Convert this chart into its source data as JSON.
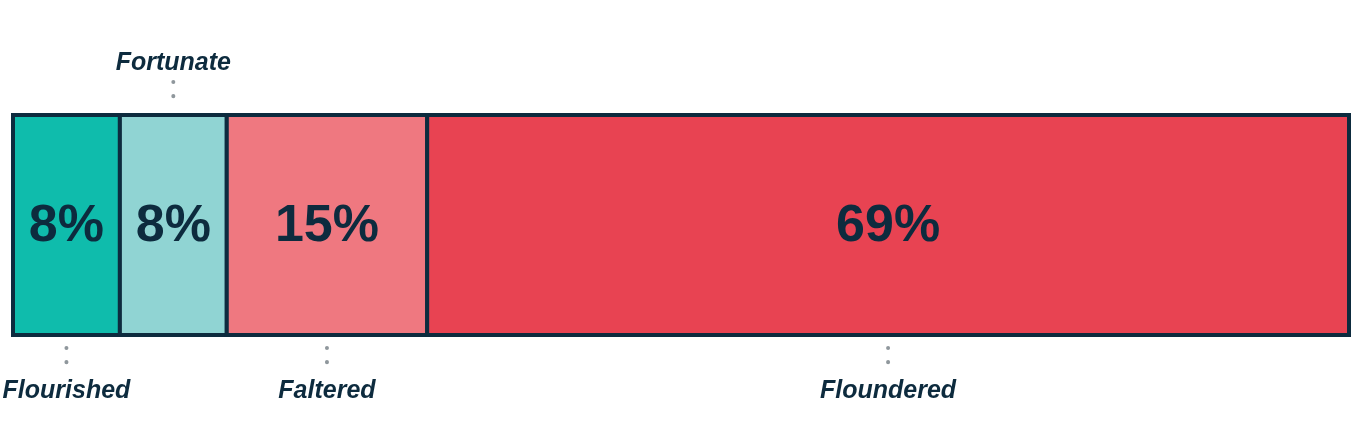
{
  "chart_data": {
    "type": "bar",
    "orientation": "horizontal",
    "stacked": true,
    "categories": [
      null
    ],
    "tick_labels": false,
    "series": [
      {
        "name": "Flourished",
        "color": "#0fbcac",
        "values": [
          8
        ],
        "value_labels": [
          "8%"
        ]
      },
      {
        "name": "Fortunate",
        "color": "#90d4d3",
        "values": [
          8
        ],
        "value_labels": [
          "8%"
        ]
      },
      {
        "name": "Faltered",
        "color": "#ef7880",
        "values": [
          15
        ],
        "value_labels": [
          "15%"
        ]
      },
      {
        "name": "Floundered",
        "color": "#e84352",
        "values": [
          69
        ],
        "value_labels": [
          "69%"
        ]
      }
    ]
  }
}
